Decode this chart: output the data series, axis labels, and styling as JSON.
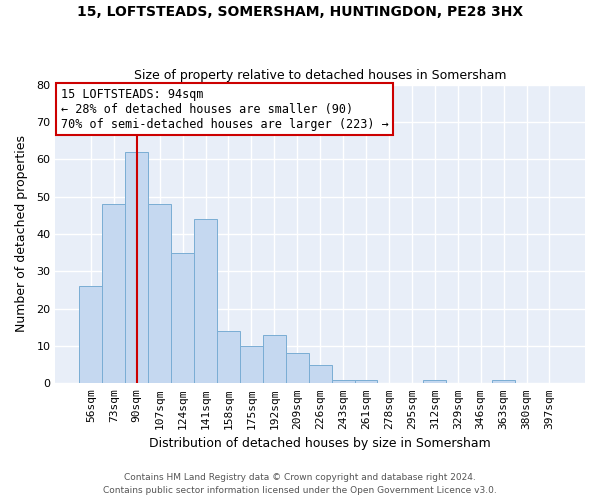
{
  "title1": "15, LOFTSTEADS, SOMERSHAM, HUNTINGDON, PE28 3HX",
  "title2": "Size of property relative to detached houses in Somersham",
  "xlabel": "Distribution of detached houses by size in Somersham",
  "ylabel": "Number of detached properties",
  "bin_labels": [
    "56sqm",
    "73sqm",
    "90sqm",
    "107sqm",
    "124sqm",
    "141sqm",
    "158sqm",
    "175sqm",
    "192sqm",
    "209sqm",
    "226sqm",
    "243sqm",
    "261sqm",
    "278sqm",
    "295sqm",
    "312sqm",
    "329sqm",
    "346sqm",
    "363sqm",
    "380sqm",
    "397sqm"
  ],
  "bar_heights": [
    26,
    48,
    62,
    48,
    35,
    44,
    14,
    10,
    13,
    8,
    5,
    1,
    1,
    0,
    0,
    1,
    0,
    0,
    1,
    0,
    0
  ],
  "bar_color": "#c5d8f0",
  "bar_edge_color": "#7aadd4",
  "vline_x_label_idx": 2,
  "annotation_title": "15 LOFTSTEADS: 94sqm",
  "annotation_line1": "← 28% of detached houses are smaller (90)",
  "annotation_line2": "70% of semi-detached houses are larger (223) →",
  "vline_color": "#cc0000",
  "ylim": [
    0,
    80
  ],
  "yticks": [
    0,
    10,
    20,
    30,
    40,
    50,
    60,
    70,
    80
  ],
  "footer1": "Contains HM Land Registry data © Crown copyright and database right 2024.",
  "footer2": "Contains public sector information licensed under the Open Government Licence v3.0.",
  "bg_color": "#ffffff",
  "plot_bg_color": "#e8eef8",
  "grid_color": "#ffffff",
  "title1_fontsize": 10,
  "title2_fontsize": 9,
  "axis_label_fontsize": 9,
  "tick_fontsize": 8,
  "annotation_fontsize": 8.5,
  "footer_fontsize": 6.5
}
